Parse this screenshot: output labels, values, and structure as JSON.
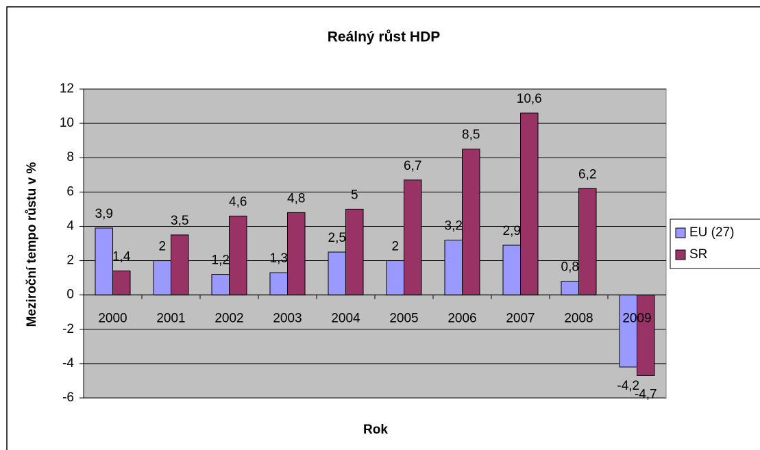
{
  "chart_data": {
    "type": "bar",
    "title": "Reálný růst HDP",
    "x_label": "Rok",
    "y_label": "Meziroční tempo růstu v %",
    "categories": [
      "2000",
      "2001",
      "2002",
      "2003",
      "2004",
      "2005",
      "2006",
      "2007",
      "2008",
      "2009"
    ],
    "series": [
      {
        "name": "EU (27)",
        "color": "#9999ff",
        "values": [
          3.9,
          2,
          1.2,
          1.3,
          2.5,
          2,
          3.2,
          2.9,
          0.8,
          -4.2
        ],
        "value_labels": [
          "3,9",
          "2",
          "1,2",
          "1,3",
          "2,5",
          "2",
          "3,2",
          "2,9",
          "0,8",
          "-4,2"
        ]
      },
      {
        "name": "SR",
        "color": "#993366",
        "values": [
          1.4,
          3.5,
          4.6,
          4.8,
          5,
          6.7,
          8.5,
          10.6,
          6.2,
          -4.7
        ],
        "value_labels": [
          "1,4",
          "3,5",
          "4,6",
          "4,8",
          "5",
          "6,7",
          "8,5",
          "10,6",
          "6,2",
          "-4,7"
        ]
      }
    ],
    "ylim": [
      -6,
      12
    ],
    "yticks": [
      -6,
      -4,
      -2,
      0,
      2,
      4,
      6,
      8,
      10,
      12
    ],
    "grid": true,
    "legend": "right"
  }
}
